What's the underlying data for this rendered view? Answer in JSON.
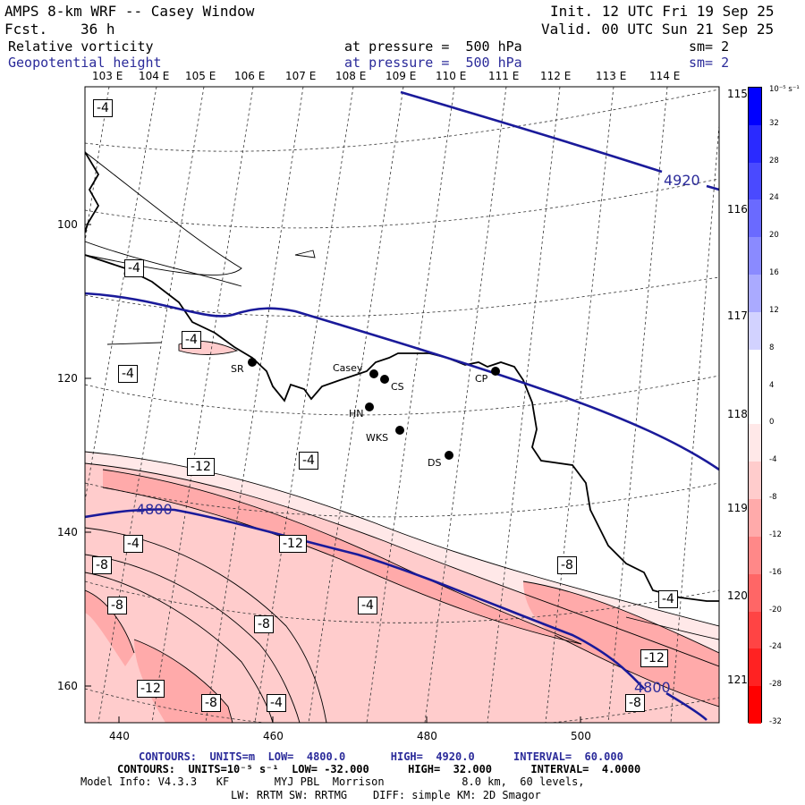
{
  "header": {
    "title": "AMPS 8-km WRF -- Casey Window",
    "forecast_label": "Fcst.",
    "forecast_value": "36 h",
    "init": "Init. 12 UTC Fri 19 Sep 25",
    "valid": "Valid. 00 UTC Sun 21 Sep 25",
    "field1_name": "Relative vorticity",
    "field1_level": "at pressure =  500 hPa",
    "field1_sm": "sm= 2",
    "field2_name": "Geopotential height",
    "field2_level": "at pressure =  500 hPa",
    "field2_sm": "sm= 2"
  },
  "lon_labels": [
    "103 E",
    "104 E",
    "105 E",
    "106 E",
    "107 E",
    "108 E",
    "109 E",
    "110 E",
    "111 E",
    "112 E",
    "113 E",
    "114 E"
  ],
  "lat_labels_right": [
    "115 E",
    "116 E",
    "117 E",
    "118 E",
    "119 E",
    "120 E",
    "121 E"
  ],
  "x_axis_ticks": [
    "440",
    "460",
    "480",
    "500"
  ],
  "y_axis_ticks": [
    "100",
    "120",
    "140",
    "160"
  ],
  "colorbar": {
    "unit": "10⁻⁵ s⁻¹",
    "labels": [
      "32",
      "28",
      "24",
      "20",
      "16",
      "12",
      "8",
      "4",
      "0",
      "-4",
      "-8",
      "-12",
      "-16",
      "-20",
      "-24",
      "-28",
      "-32"
    ],
    "colors": [
      "#0000ff",
      "#2a2aff",
      "#4a4aff",
      "#6a6aff",
      "#8a8aff",
      "#aaaaff",
      "#d2d2ff",
      "#ffffff",
      "#ffffff",
      "#ffe8e8",
      "#ffcccc",
      "#ffaaaa",
      "#ff8888",
      "#ff6666",
      "#ff4444",
      "#ff2222",
      "#ff0000"
    ]
  },
  "stations": [
    {
      "name": "SR"
    },
    {
      "name": "Casey"
    },
    {
      "name": "CS"
    },
    {
      "name": "HN"
    },
    {
      "name": "WKS"
    },
    {
      "name": "CP"
    },
    {
      "name": "DS"
    }
  ],
  "height_labels": [
    "4920",
    "4800",
    "4800"
  ],
  "vort_labels": [
    "-4",
    "-4",
    "-4",
    "-4",
    "-12",
    "-4",
    "-12",
    "-4",
    "-8",
    "-8",
    "-8",
    "-4",
    "-8",
    "-4",
    "-12",
    "-4",
    "-8",
    "-12",
    "-8"
  ],
  "footer": {
    "line1": "CONTOURS:  UNITS=m  LOW=  4800.0       HIGH=  4920.0      INTERVAL=  60.000",
    "line2": "CONTOURS:  UNITS=10⁻⁵ s⁻¹  LOW= -32.000      HIGH=  32.000      INTERVAL=  4.0000",
    "line3": "Model Info: V4.3.3   KF       MYJ PBL  Morrison            8.0 km,  60 levels,",
    "line4": "LW: RRTM SW: RRTMG    DIFF: simple KM: 2D Smagor"
  }
}
